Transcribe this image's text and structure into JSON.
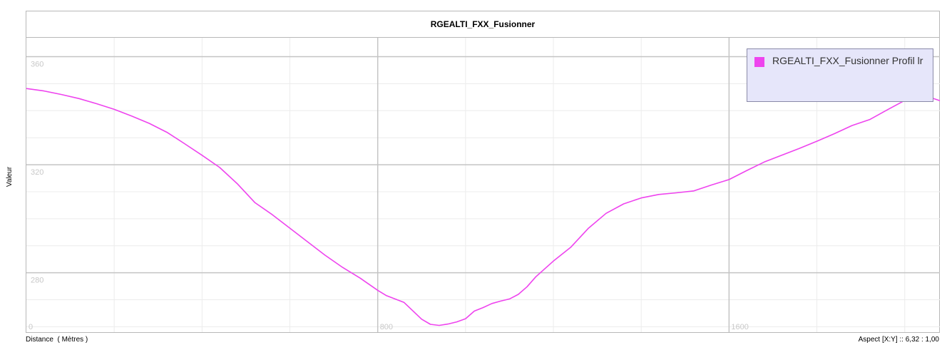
{
  "chart_data": {
    "type": "line",
    "title": "RGEALTI_FXX_Fusionner",
    "xlabel": "Distance  ( Mètres )",
    "ylabel": "Valeur",
    "aspect_text": "Aspect [X:Y] :: 6,32 : 1,00",
    "xlim": [
      0,
      2080
    ],
    "ylim": [
      258,
      367
    ],
    "x_ticks": [
      0,
      800,
      1600
    ],
    "x_tick_labels": [
      "0",
      "800",
      "1600"
    ],
    "y_ticks": [
      280,
      320,
      360
    ],
    "y_tick_labels": [
      "280",
      "320",
      "360"
    ],
    "grid": true,
    "legend_position": "top-right",
    "series": [
      {
        "name": "RGEALTI_FXX_Fusionner Profil lr",
        "color": "#ee44ee",
        "x": [
          0,
          40,
          80,
          120,
          160,
          200,
          240,
          280,
          320,
          360,
          400,
          440,
          480,
          520,
          560,
          600,
          640,
          680,
          720,
          760,
          800,
          820,
          860,
          900,
          920,
          940,
          960,
          980,
          1000,
          1020,
          1040,
          1060,
          1080,
          1100,
          1120,
          1140,
          1160,
          1200,
          1240,
          1280,
          1320,
          1360,
          1400,
          1440,
          1480,
          1520,
          1560,
          1600,
          1640,
          1680,
          1720,
          1760,
          1800,
          1840,
          1880,
          1920,
          1960,
          2000,
          2040,
          2080
        ],
        "y": [
          348.2,
          347.3,
          346.0,
          344.5,
          342.6,
          340.5,
          338.0,
          335.3,
          332.0,
          327.8,
          323.5,
          319.0,
          313.0,
          306.0,
          301.5,
          296.5,
          291.5,
          286.5,
          282.0,
          278.0,
          273.5,
          271.5,
          269.0,
          262.8,
          260.9,
          260.5,
          261.0,
          261.8,
          263.0,
          265.8,
          267.1,
          268.6,
          269.5,
          270.3,
          272.0,
          274.8,
          278.5,
          284.3,
          289.5,
          296.5,
          302.0,
          305.5,
          307.7,
          309.0,
          309.6,
          310.3,
          312.5,
          314.5,
          317.8,
          321.0,
          323.5,
          326.0,
          328.7,
          331.5,
          334.5,
          336.7,
          340.3,
          343.8,
          345.9,
          343.7
        ]
      }
    ]
  }
}
